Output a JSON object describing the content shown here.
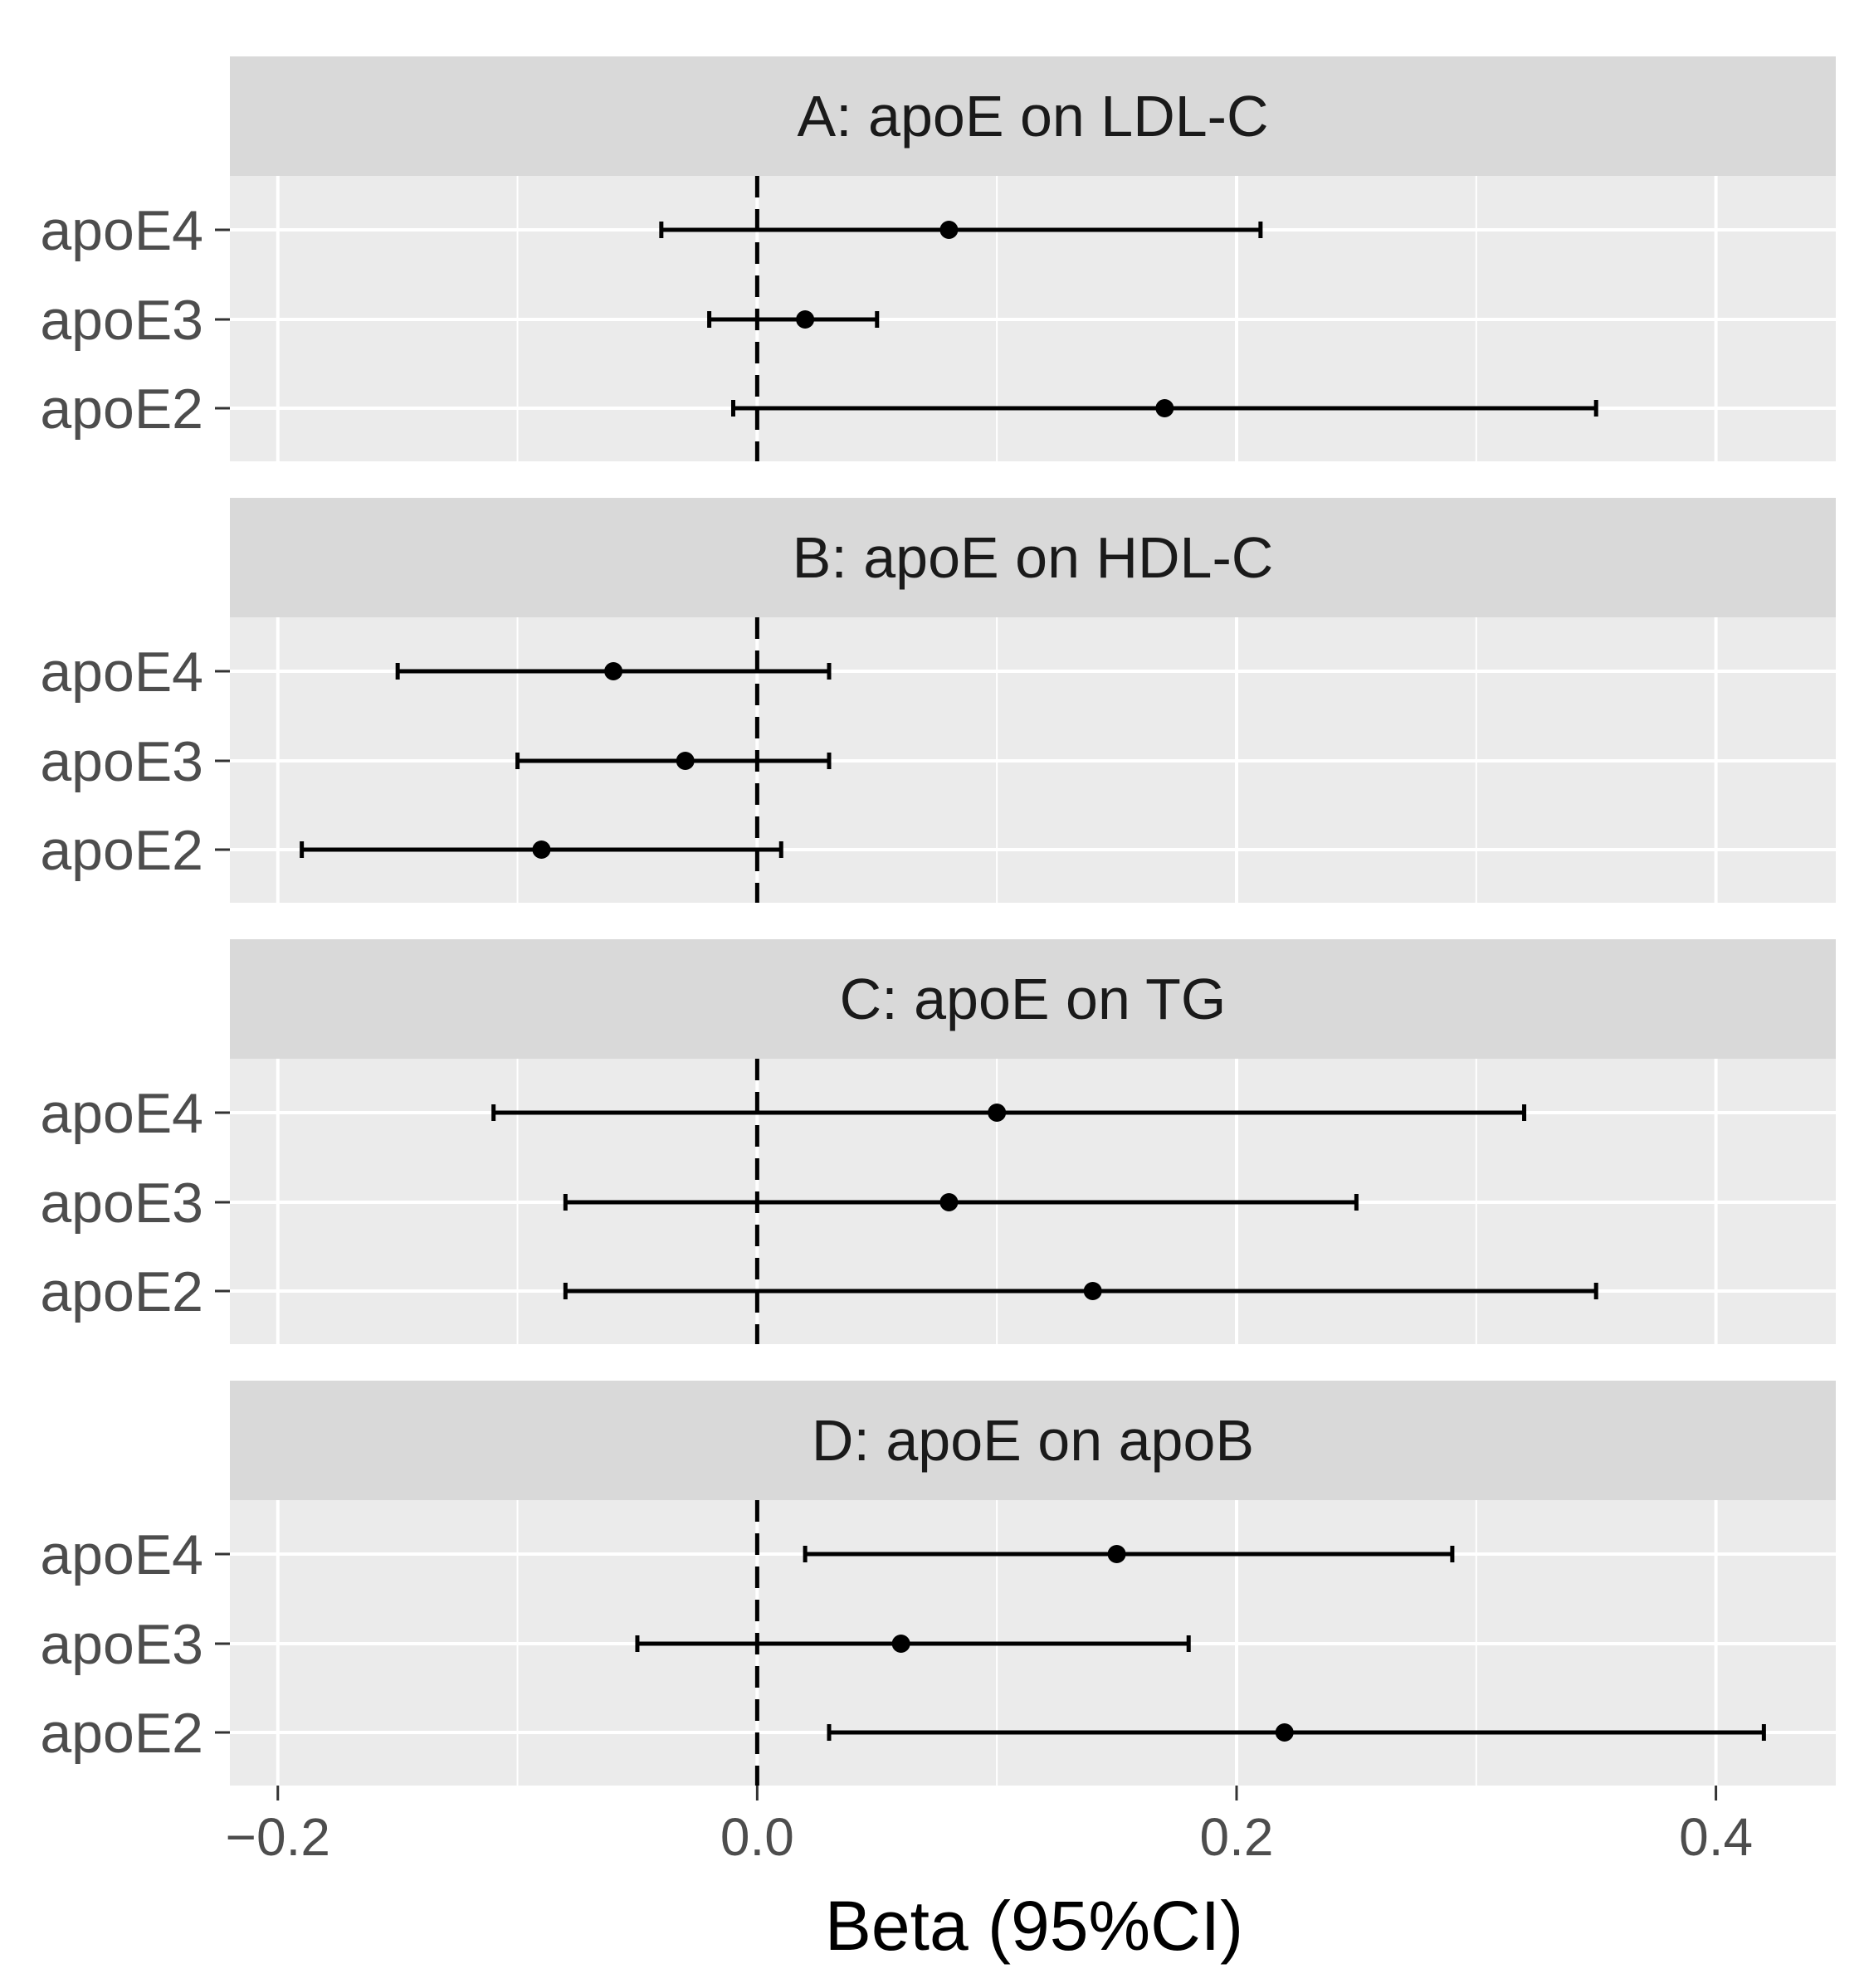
{
  "chart_data": {
    "type": "forest",
    "xlabel": "Beta (95%CI)",
    "xlim": [
      -0.22,
      0.45
    ],
    "x_ticks": [
      -0.2,
      0.0,
      0.2,
      0.4
    ],
    "x_tick_labels": [
      "−0.2",
      "0.0",
      "0.2",
      "0.4"
    ],
    "reference_line": 0.0,
    "categories": [
      "apoE4",
      "apoE3",
      "apoE2"
    ],
    "panels": [
      {
        "title": "A: apoE on LDL-C",
        "points": [
          {
            "label": "apoE4",
            "beta": 0.08,
            "lower": -0.04,
            "upper": 0.21
          },
          {
            "label": "apoE3",
            "beta": 0.02,
            "lower": -0.02,
            "upper": 0.05
          },
          {
            "label": "apoE2",
            "beta": 0.17,
            "lower": -0.01,
            "upper": 0.35
          }
        ]
      },
      {
        "title": "B: apoE on HDL-C",
        "points": [
          {
            "label": "apoE4",
            "beta": -0.06,
            "lower": -0.15,
            "upper": 0.03
          },
          {
            "label": "apoE3",
            "beta": -0.03,
            "lower": -0.1,
            "upper": 0.03
          },
          {
            "label": "apoE2",
            "beta": -0.09,
            "lower": -0.19,
            "upper": 0.01
          }
        ]
      },
      {
        "title": "C: apoE on TG",
        "points": [
          {
            "label": "apoE4",
            "beta": 0.1,
            "lower": -0.11,
            "upper": 0.32
          },
          {
            "label": "apoE3",
            "beta": 0.08,
            "lower": -0.08,
            "upper": 0.25
          },
          {
            "label": "apoE2",
            "beta": 0.14,
            "lower": -0.08,
            "upper": 0.35
          }
        ]
      },
      {
        "title": "D: apoE on apoB",
        "points": [
          {
            "label": "apoE4",
            "beta": 0.15,
            "lower": 0.02,
            "upper": 0.29
          },
          {
            "label": "apoE3",
            "beta": 0.06,
            "lower": -0.05,
            "upper": 0.18
          },
          {
            "label": "apoE2",
            "beta": 0.22,
            "lower": 0.03,
            "upper": 0.42
          }
        ]
      }
    ]
  }
}
